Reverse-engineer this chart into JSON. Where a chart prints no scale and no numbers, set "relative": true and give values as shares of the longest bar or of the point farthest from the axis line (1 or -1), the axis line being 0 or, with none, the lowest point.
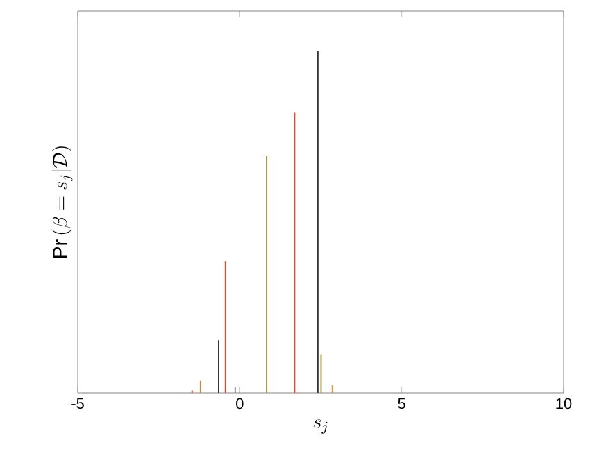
{
  "chart_data": {
    "type": "bar",
    "relative": true,
    "xlabel": "s_j",
    "ylabel": "\\mathrm{Pr}\\left(\\beta=s_j|\\mathcal{D}\\right)",
    "x": [
      -1.47,
      -1.21,
      -0.65,
      -0.44,
      -0.14,
      0.83,
      1.69,
      2.41,
      2.51,
      2.86
    ],
    "values": [
      0.007,
      0.035,
      0.154,
      0.386,
      0.016,
      0.693,
      0.82,
      1.0,
      0.113,
      0.023
    ],
    "colors": [
      "#e8452c",
      "#d8843a",
      "#333333",
      "#e8452c",
      "#888888",
      "#a0963c",
      "#e8452c",
      "#333333",
      "#a0963c",
      "#e0802c"
    ],
    "marker": "none",
    "xlim": [
      -5,
      10
    ],
    "xticks": [
      -5,
      0,
      5,
      10
    ]
  }
}
